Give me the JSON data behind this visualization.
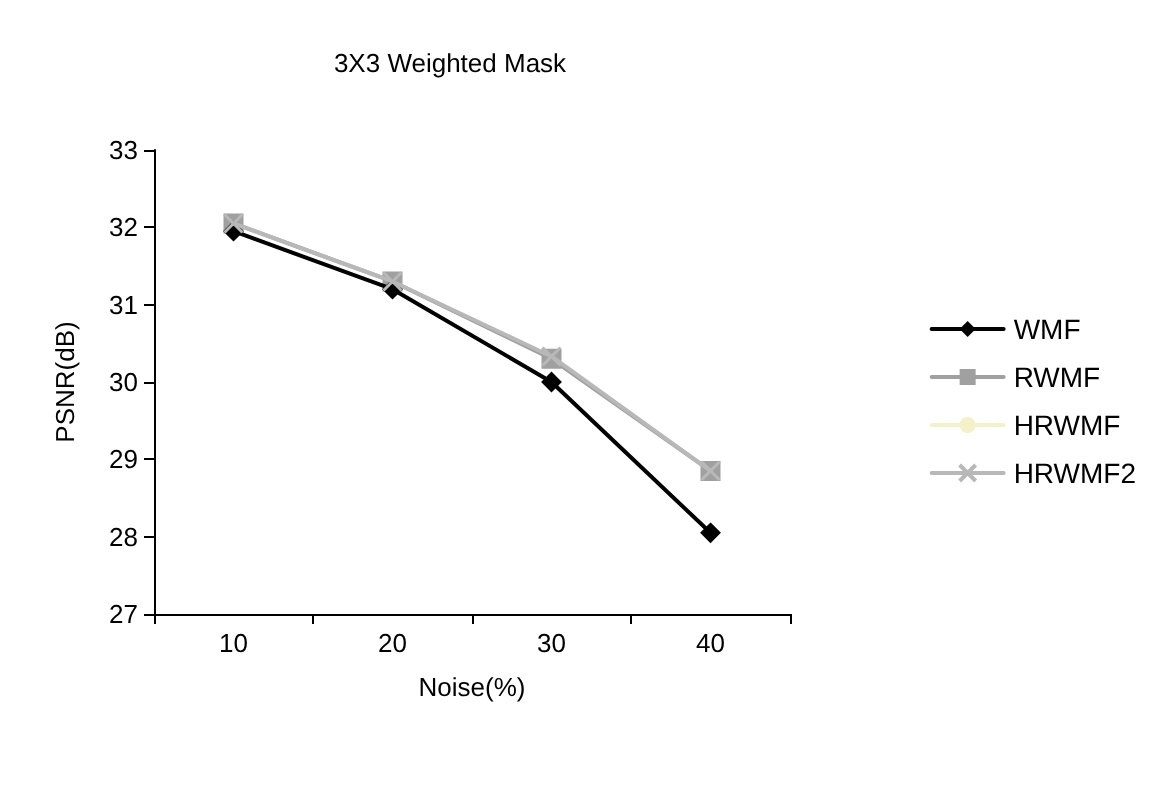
{
  "chart_data": {
    "type": "line",
    "title": "3X3 Weighted Mask",
    "xlabel": "Noise(%)",
    "ylabel": "PSNR(dB)",
    "categories": [
      "10",
      "20",
      "30",
      "40"
    ],
    "series": [
      {
        "name": "WMF",
        "color": "#000000",
        "marker": "diamond",
        "values": [
          31.95,
          31.2,
          30.0,
          28.05
        ]
      },
      {
        "name": "RWMF",
        "color": "#a0a0a0",
        "marker": "square",
        "values": [
          32.05,
          31.3,
          30.3,
          28.85
        ]
      },
      {
        "name": "HRWMF",
        "color": "#f4f0c8",
        "marker": "none",
        "values": [
          null,
          null,
          null,
          null
        ]
      },
      {
        "name": "HRWMF2",
        "color": "#b8b8b8",
        "marker": "cross",
        "values": [
          32.05,
          31.3,
          30.33,
          28.85
        ]
      }
    ],
    "ylim": [
      27,
      33
    ],
    "yticks": [
      27,
      28,
      29,
      30,
      31,
      32,
      33
    ],
    "grid": false,
    "legend": "right"
  }
}
